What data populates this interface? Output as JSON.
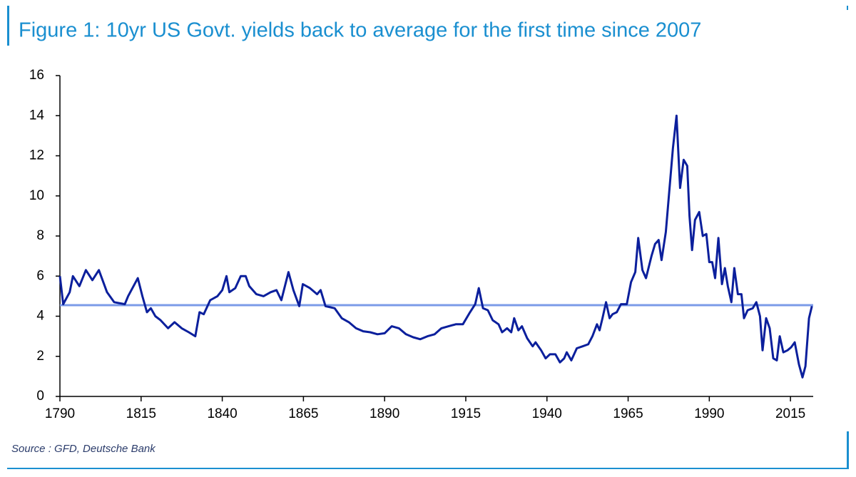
{
  "chart_data": {
    "type": "line",
    "title": "Figure 1: 10yr US Govt. yields back to average for the first time since 2007",
    "source": "Source : GFD, Deutsche Bank",
    "x": [
      1790,
      1791,
      1793,
      1794,
      1796,
      1798,
      1800,
      1802,
      1804.5,
      1806.7,
      1810,
      1811,
      1814,
      1815.4,
      1816.8,
      1818,
      1819.4,
      1821,
      1823.3,
      1825.3,
      1827.5,
      1829.7,
      1831.7,
      1833,
      1834.3,
      1836.3,
      1838.5,
      1840,
      1841.3,
      1842.2,
      1844,
      1845.7,
      1847.2,
      1848.3,
      1850.5,
      1852.7,
      1854.9,
      1856.7,
      1858.2,
      1860.4,
      1861.9,
      1863.7,
      1864.8,
      1867,
      1869.2,
      1870.3,
      1871.8,
      1874.6,
      1876.8,
      1879,
      1881.2,
      1883.4,
      1885.6,
      1887.8,
      1890,
      1892.2,
      1894.4,
      1896.6,
      1898.8,
      1901,
      1903.2,
      1905.4,
      1907.5,
      1909.7,
      1911.9,
      1914.1,
      1916.3,
      1917.9,
      1919,
      1920.3,
      1921.8,
      1923.3,
      1925.1,
      1926.2,
      1927.7,
      1929,
      1929.9,
      1931.2,
      1932.3,
      1933.9,
      1935.6,
      1936.5,
      1938.2,
      1939.6,
      1940.9,
      1942.6,
      1944,
      1945.3,
      1946.1,
      1947.5,
      1949.2,
      1951,
      1952.7,
      1954,
      1955.4,
      1956.2,
      1957.1,
      1958.2,
      1959.3,
      1960.2,
      1961.5,
      1962.8,
      1964.6,
      1965.9,
      1967.2,
      1968.1,
      1969.4,
      1970.5,
      1972.2,
      1973.3,
      1974.4,
      1975.3,
      1976.6,
      1977.7,
      1978.8,
      1979.9,
      1981,
      1982.1,
      1983.2,
      1983.9,
      1984.7,
      1985.6,
      1986.9,
      1988,
      1989.1,
      1990,
      1990.9,
      1991.8,
      1992.8,
      1993.9,
      1994.8,
      1995.7,
      1996.8,
      1997.7,
      1998.8,
      1999.9,
      2000.7,
      2001.8,
      2003.4,
      2004.5,
      2005.6,
      2006.4,
      2007.5,
      2008.6,
      2009.7,
      2010.8,
      2011.7,
      2012.8,
      2014.1,
      2015.2,
      2016.3,
      2017.6,
      2018.7,
      2019.6,
      2020.7,
      2021.6
    ],
    "values": [
      6.0,
      4.6,
      5.2,
      6.0,
      5.5,
      6.3,
      5.8,
      6.3,
      5.2,
      4.7,
      4.6,
      5.0,
      5.9,
      5.0,
      4.2,
      4.4,
      4.0,
      3.8,
      3.4,
      3.7,
      3.4,
      3.2,
      3.0,
      4.2,
      4.1,
      4.8,
      5.0,
      5.3,
      6.0,
      5.2,
      5.4,
      6.0,
      6.0,
      5.5,
      5.1,
      5.0,
      5.2,
      5.3,
      4.8,
      6.2,
      5.3,
      4.5,
      5.6,
      5.4,
      5.1,
      5.3,
      4.5,
      4.4,
      3.9,
      3.7,
      3.4,
      3.25,
      3.2,
      3.1,
      3.15,
      3.5,
      3.4,
      3.1,
      2.95,
      2.85,
      3.0,
      3.1,
      3.4,
      3.5,
      3.6,
      3.6,
      4.2,
      4.6,
      5.4,
      4.4,
      4.3,
      3.8,
      3.6,
      3.2,
      3.4,
      3.2,
      3.9,
      3.3,
      3.5,
      2.9,
      2.5,
      2.7,
      2.3,
      1.9,
      2.1,
      2.1,
      1.7,
      1.9,
      2.2,
      1.8,
      2.4,
      2.5,
      2.6,
      3.0,
      3.6,
      3.3,
      3.9,
      4.7,
      3.9,
      4.1,
      4.2,
      4.6,
      4.6,
      5.7,
      6.2,
      7.9,
      6.3,
      5.9,
      7.0,
      7.6,
      7.8,
      6.8,
      8.2,
      10.3,
      12.4,
      14.0,
      10.4,
      11.8,
      11.5,
      9.0,
      7.3,
      8.8,
      9.2,
      8.0,
      8.1,
      6.7,
      6.7,
      5.9,
      7.9,
      5.6,
      6.4,
      5.5,
      4.7,
      6.4,
      5.1,
      5.1,
      3.9,
      4.3,
      4.4,
      4.7,
      4.0,
      2.3,
      3.9,
      3.4,
      1.9,
      1.8,
      3.0,
      2.2,
      2.3,
      2.45,
      2.7,
      1.6,
      0.95,
      1.5,
      3.9,
      4.5
    ],
    "color": "#0b1f9c",
    "reference_line": {
      "value": 4.55,
      "color": "#7b9be8"
    },
    "xlim": [
      1790,
      2022
    ],
    "xticks": [
      1790,
      1815,
      1840,
      1865,
      1890,
      1915,
      1940,
      1965,
      1990,
      2015
    ],
    "ylim": [
      0,
      16
    ],
    "yticks": [
      0,
      2,
      4,
      6,
      8,
      10,
      12,
      14,
      16
    ],
    "grid": false
  }
}
